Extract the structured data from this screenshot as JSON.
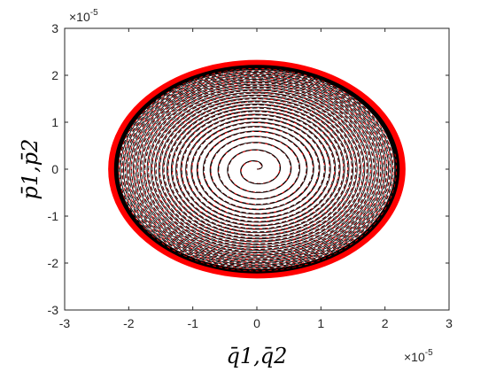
{
  "chart_data": {
    "type": "line",
    "title": "",
    "xlabel": "q̄1,q̄2",
    "ylabel": "p̄1,p̄2",
    "x_scale_label": "×10",
    "x_scale_exp": "-5",
    "y_scale_label": "×10",
    "y_scale_exp": "-5",
    "xlim": [
      -3,
      3
    ],
    "ylim": [
      -3,
      3
    ],
    "xticks": [
      -3,
      -2,
      -1,
      0,
      1,
      2,
      3
    ],
    "yticks": [
      -3,
      -2,
      -1,
      0,
      1,
      2,
      3
    ],
    "xtick_labels": [
      "-3",
      "-2",
      "-1",
      "0",
      "1",
      "2",
      "3"
    ],
    "ytick_labels": [
      "-3",
      "-2",
      "-1",
      "0",
      "1",
      "2",
      "3"
    ],
    "grid": false,
    "legend": "none",
    "series": [
      {
        "style": "solid",
        "color": "#000000",
        "shape": "outward spiral from origin",
        "start": [
          0,
          0
        ],
        "outer_x_radius": 2.25,
        "outer_y_radius": 2.25
      },
      {
        "style": "dashed",
        "color": "#e8000b",
        "shape": "outward spiral from origin",
        "start": [
          0,
          0
        ],
        "outer_x_radius": 2.3,
        "outer_y_radius": 2.3
      }
    ]
  },
  "colors": {
    "solid_series": "#000000",
    "dashed_series": "#ff0000",
    "axes": "#262626"
  }
}
